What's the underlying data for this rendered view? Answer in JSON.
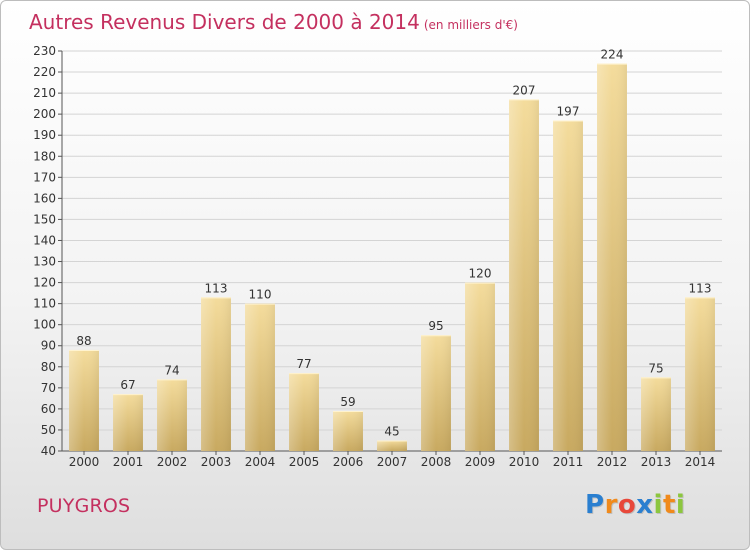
{
  "header": {
    "title": "Autres Revenus Divers de 2000 à 2014",
    "subtitle": "(en milliers d'€)"
  },
  "footer": {
    "place": "PUYGROS",
    "logo": "Proxiti",
    "logo_letters": [
      {
        "ch": "P",
        "color": "#2a7fd0"
      },
      {
        "ch": "r",
        "color": "#f08a1c"
      },
      {
        "ch": "o",
        "color": "#e8483a"
      },
      {
        "ch": "x",
        "color": "#2a7fd0"
      },
      {
        "ch": "i",
        "color": "#8cc63f"
      },
      {
        "ch": "t",
        "color": "#f08a1c"
      },
      {
        "ch": "i",
        "color": "#8cc63f"
      }
    ]
  },
  "colors": {
    "title": "#c4305f",
    "bar_light": "#f4dc9c",
    "bar_dark": "#c8a960",
    "grid": "#d4d4d4",
    "axis": "#555555"
  },
  "chart_data": {
    "type": "bar",
    "categories": [
      "2000",
      "2001",
      "2002",
      "2003",
      "2004",
      "2005",
      "2006",
      "2007",
      "2008",
      "2009",
      "2010",
      "2011",
      "2012",
      "2013",
      "2014"
    ],
    "values": [
      88,
      67,
      74,
      113,
      110,
      77,
      59,
      45,
      95,
      120,
      207,
      197,
      224,
      75,
      113
    ],
    "ylim": [
      40,
      230
    ],
    "yticks": [
      40,
      50,
      60,
      70,
      80,
      90,
      100,
      110,
      120,
      130,
      140,
      150,
      160,
      170,
      180,
      190,
      200,
      210,
      220,
      230
    ],
    "grid": true,
    "data_labels": true
  }
}
